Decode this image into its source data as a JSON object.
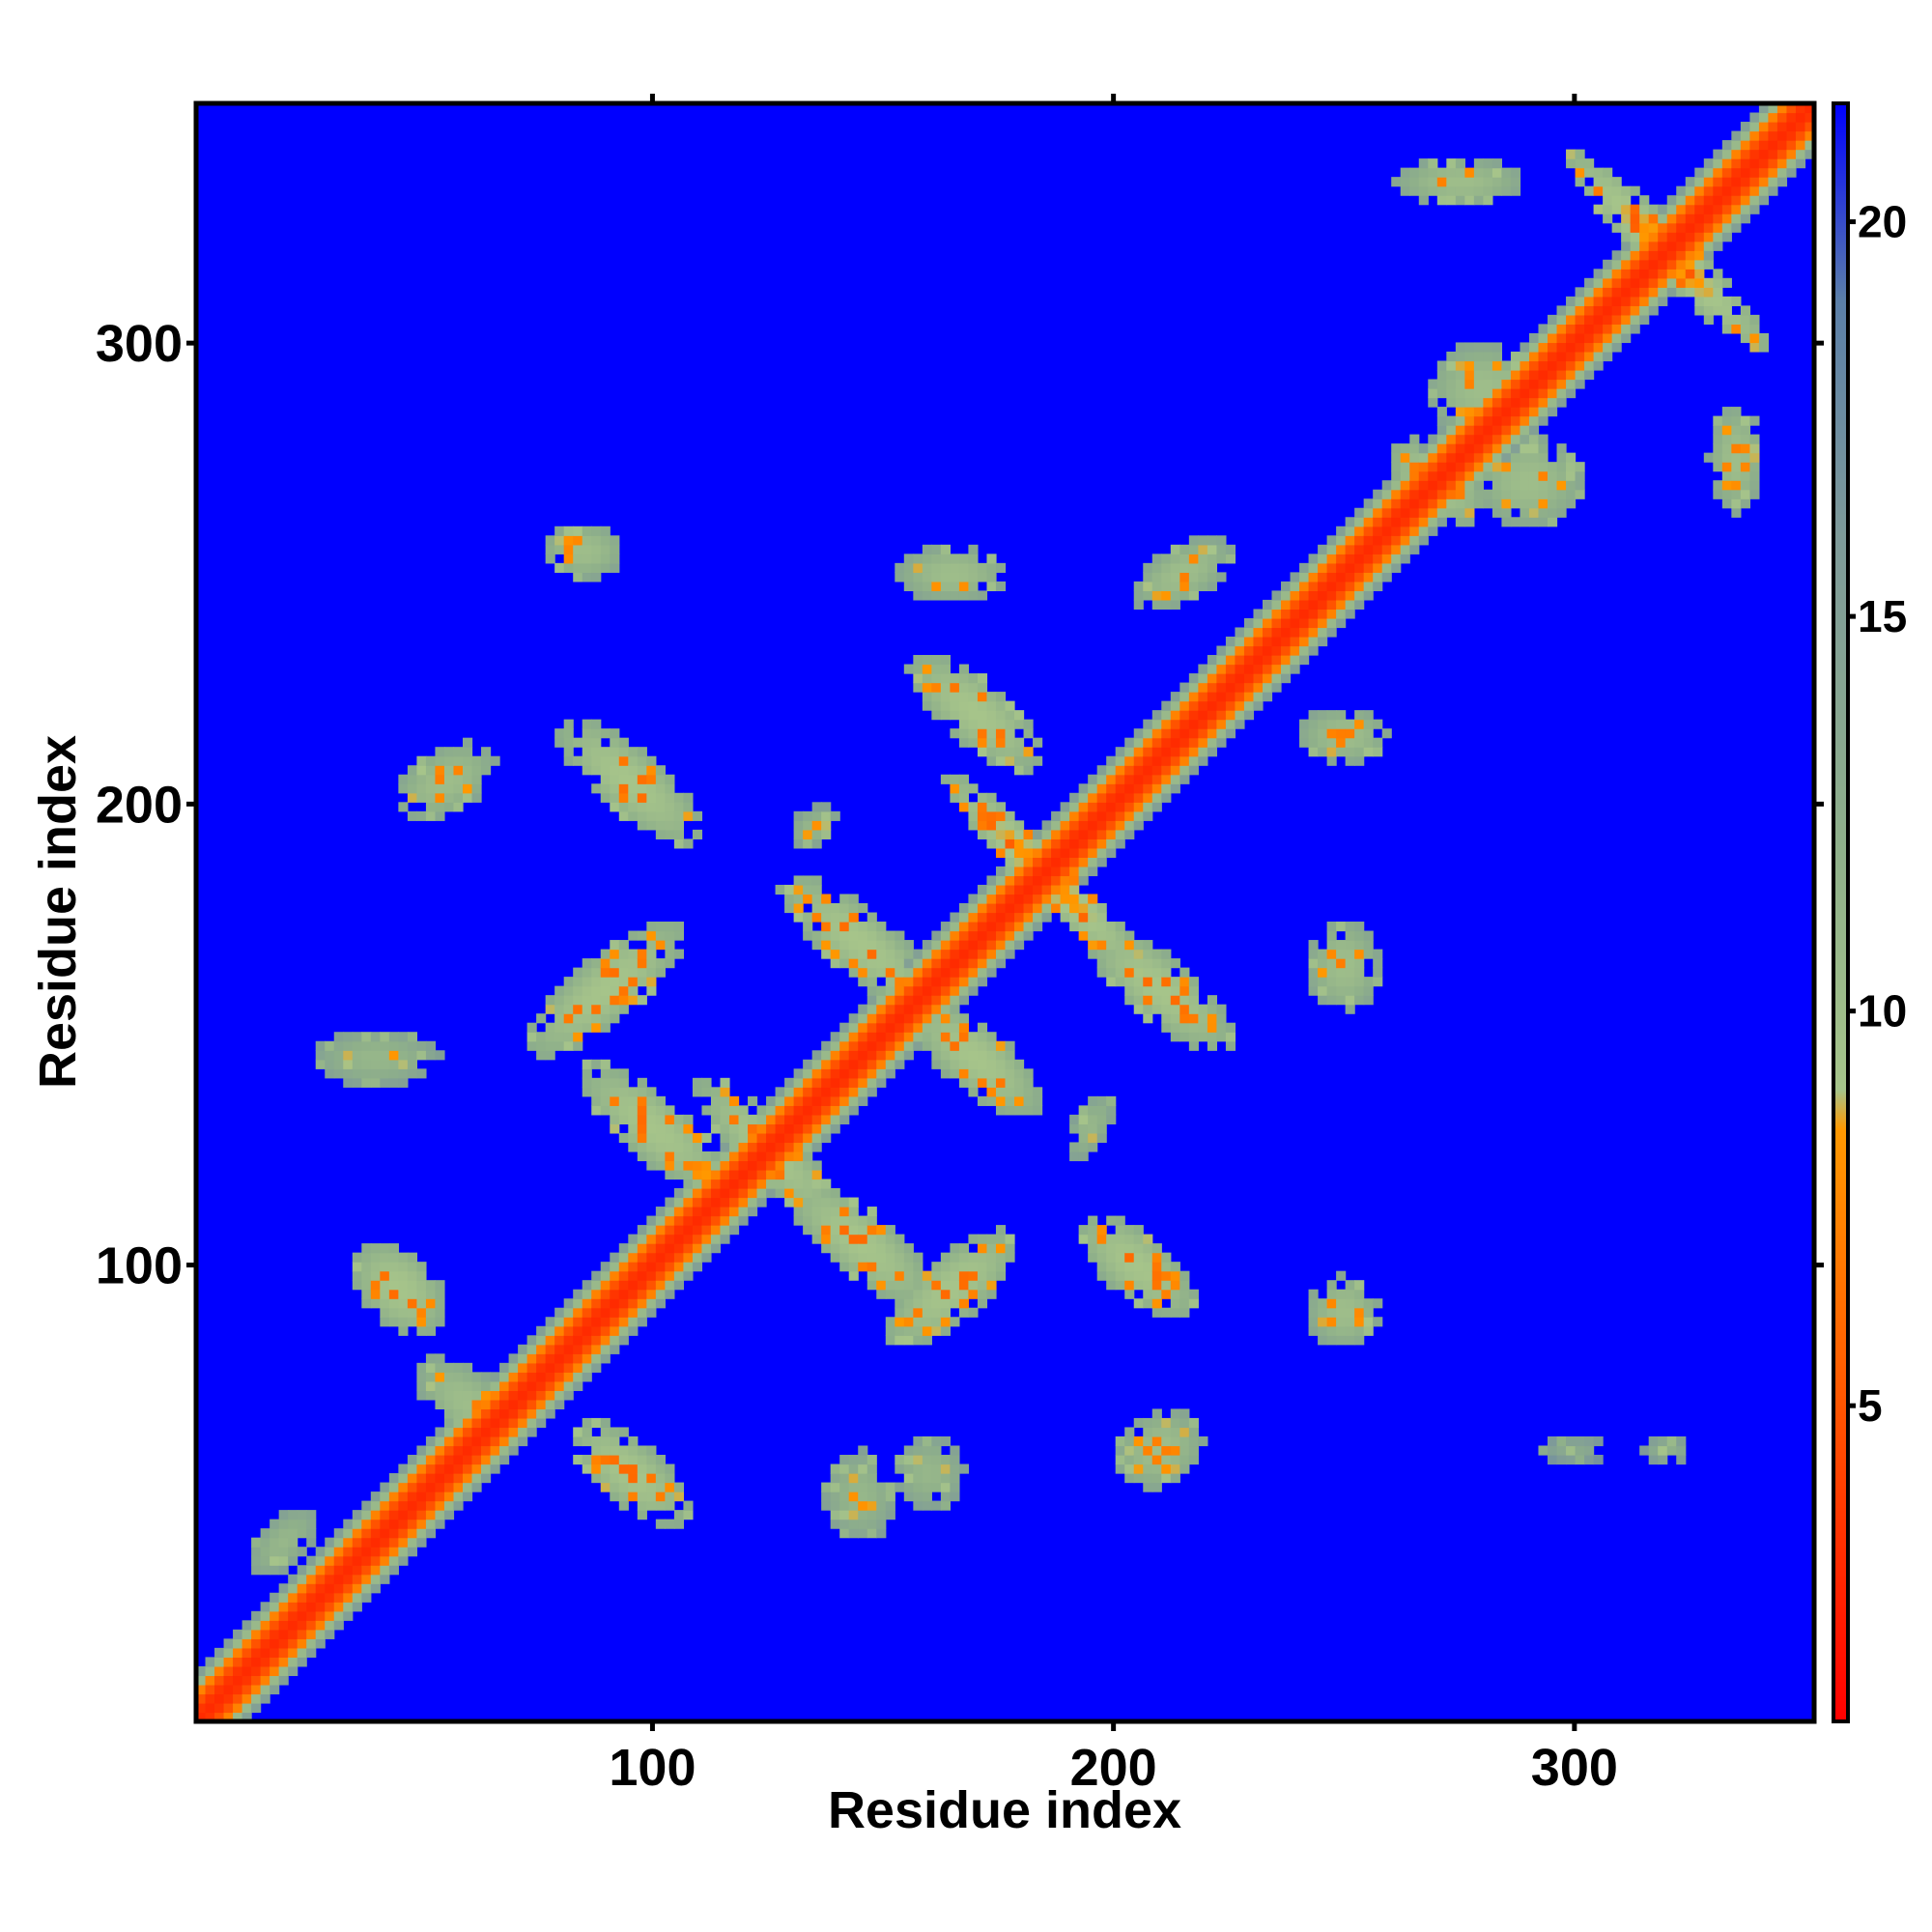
{
  "chart_data": {
    "type": "heatmap",
    "title": "",
    "xlabel": "Residue index",
    "ylabel": "Residue index",
    "xlim": [
      1,
      352
    ],
    "ylim": [
      1,
      352
    ],
    "x_ticks": [
      "100",
      "200",
      "300"
    ],
    "y_ticks": [
      "100",
      "200",
      "300"
    ],
    "x_tick_values": [
      100,
      200,
      300
    ],
    "y_tick_values": [
      100,
      200,
      300
    ],
    "colorbar": {
      "ticks": [
        "5",
        "10",
        "15",
        "20"
      ],
      "tick_values": [
        5,
        10,
        15,
        20
      ],
      "range": [
        1,
        21.5
      ],
      "stops": [
        {
          "value": 1,
          "color": "#ff0000"
        },
        {
          "value": 5,
          "color": "#ff5500"
        },
        {
          "value": 8.5,
          "color": "#ff9900"
        },
        {
          "value": 9,
          "color": "#a6c48a"
        },
        {
          "value": 12,
          "color": "#8fb08a"
        },
        {
          "value": 16,
          "color": "#7e9a99"
        },
        {
          "value": 19,
          "color": "#5b7fa8"
        },
        {
          "value": 21.5,
          "color": "#0000ff"
        }
      ]
    },
    "background_value": 21.5,
    "diagonal": {
      "from": 1,
      "to": 352,
      "core_value": 3,
      "halfwidth_residues": 10
    },
    "contact_blobs": [
      {
        "x": 45,
        "y": 95,
        "sx": 12,
        "sy": 8,
        "angle": -45,
        "value": 9
      },
      {
        "x": 40,
        "y": 145,
        "sx": 14,
        "sy": 6,
        "angle": 0,
        "value": 11
      },
      {
        "x": 90,
        "y": 160,
        "sx": 22,
        "sy": 7,
        "angle": 40,
        "value": 9
      },
      {
        "x": 100,
        "y": 130,
        "sx": 20,
        "sy": 7,
        "angle": -40,
        "value": 9
      },
      {
        "x": 55,
        "y": 205,
        "sx": 12,
        "sy": 7,
        "angle": 30,
        "value": 10
      },
      {
        "x": 95,
        "y": 205,
        "sx": 20,
        "sy": 7,
        "angle": -40,
        "value": 9
      },
      {
        "x": 85,
        "y": 255,
        "sx": 9,
        "sy": 6,
        "angle": 0,
        "value": 10
      },
      {
        "x": 60,
        "y": 70,
        "sx": 14,
        "sy": 7,
        "angle": -40,
        "value": 10
      },
      {
        "x": 95,
        "y": 55,
        "sx": 16,
        "sy": 7,
        "angle": -40,
        "value": 9
      },
      {
        "x": 145,
        "y": 105,
        "sx": 20,
        "sy": 7,
        "angle": -40,
        "value": 9
      },
      {
        "x": 165,
        "y": 95,
        "sx": 18,
        "sy": 7,
        "angle": 40,
        "value": 9
      },
      {
        "x": 145,
        "y": 170,
        "sx": 22,
        "sy": 7,
        "angle": -40,
        "value": 9
      },
      {
        "x": 170,
        "y": 145,
        "sx": 18,
        "sy": 7,
        "angle": -40,
        "value": 9
      },
      {
        "x": 170,
        "y": 220,
        "sx": 18,
        "sy": 7,
        "angle": -40,
        "value": 9
      },
      {
        "x": 165,
        "y": 250,
        "sx": 12,
        "sy": 6,
        "angle": 0,
        "value": 10
      },
      {
        "x": 210,
        "y": 160,
        "sx": 20,
        "sy": 7,
        "angle": -40,
        "value": 9
      },
      {
        "x": 205,
        "y": 100,
        "sx": 16,
        "sy": 7,
        "angle": -40,
        "value": 9
      },
      {
        "x": 210,
        "y": 60,
        "sx": 10,
        "sy": 8,
        "angle": 30,
        "value": 10
      },
      {
        "x": 145,
        "y": 50,
        "sx": 8,
        "sy": 10,
        "angle": 0,
        "value": 11
      },
      {
        "x": 160,
        "y": 55,
        "sx": 8,
        "sy": 8,
        "angle": 0,
        "value": 11
      },
      {
        "x": 215,
        "y": 250,
        "sx": 12,
        "sy": 6,
        "angle": 30,
        "value": 10
      },
      {
        "x": 250,
        "y": 215,
        "sx": 10,
        "sy": 6,
        "angle": 0,
        "value": 10
      },
      {
        "x": 250,
        "y": 165,
        "sx": 8,
        "sy": 10,
        "angle": 0,
        "value": 10
      },
      {
        "x": 250,
        "y": 90,
        "sx": 8,
        "sy": 8,
        "angle": -30,
        "value": 10
      },
      {
        "x": 270,
        "y": 270,
        "sx": 12,
        "sy": 7,
        "angle": -40,
        "value": 9
      },
      {
        "x": 280,
        "y": 290,
        "sx": 12,
        "sy": 10,
        "angle": 0,
        "value": 10
      },
      {
        "x": 290,
        "y": 270,
        "sx": 12,
        "sy": 10,
        "angle": 0,
        "value": 10
      },
      {
        "x": 320,
        "y": 320,
        "sx": 30,
        "sy": 5,
        "angle": -45,
        "value": 8
      },
      {
        "x": 275,
        "y": 335,
        "sx": 14,
        "sy": 5,
        "angle": 0,
        "value": 10
      },
      {
        "x": 335,
        "y": 275,
        "sx": 6,
        "sy": 12,
        "angle": 0,
        "value": 10
      },
      {
        "x": 185,
        "y": 185,
        "sx": 30,
        "sy": 5,
        "angle": -45,
        "value": 8
      },
      {
        "x": 125,
        "y": 125,
        "sx": 22,
        "sy": 6,
        "angle": -45,
        "value": 9
      },
      {
        "x": 195,
        "y": 130,
        "sx": 8,
        "sy": 4,
        "angle": 60,
        "value": 11
      },
      {
        "x": 135,
        "y": 195,
        "sx": 6,
        "sy": 4,
        "angle": 30,
        "value": 11
      },
      {
        "x": 320,
        "y": 60,
        "sx": 5,
        "sy": 3,
        "angle": 0,
        "value": 12
      },
      {
        "x": 300,
        "y": 60,
        "sx": 8,
        "sy": 3,
        "angle": 0,
        "value": 13
      },
      {
        "x": 20,
        "y": 40,
        "sx": 10,
        "sy": 5,
        "angle": 45,
        "value": 11
      }
    ]
  }
}
